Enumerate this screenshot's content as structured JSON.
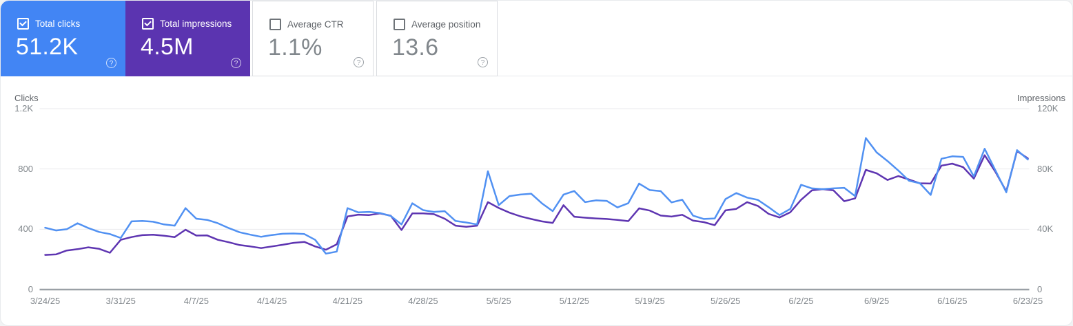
{
  "cards": [
    {
      "label": "Total clicks",
      "value": "51.2K",
      "checked": true,
      "selected": true,
      "color": "#4285f4"
    },
    {
      "label": "Total impressions",
      "value": "4.5M",
      "checked": true,
      "selected": true,
      "color": "#5b34b0"
    },
    {
      "label": "Average CTR",
      "value": "1.1%",
      "checked": false,
      "selected": false,
      "color": "#ffffff"
    },
    {
      "label": "Average position",
      "value": "13.6",
      "checked": false,
      "selected": false,
      "color": "#ffffff"
    }
  ],
  "chart_data": {
    "type": "line",
    "left_axis": {
      "title": "Clicks",
      "ticks": [
        "1.2K",
        "800",
        "400",
        "0"
      ],
      "max": 1200
    },
    "right_axis": {
      "title": "Impressions",
      "ticks": [
        "120K",
        "80K",
        "40K",
        "0"
      ],
      "max": 120000
    },
    "x_tick_labels": [
      "3/24/25",
      "3/31/25",
      "4/7/25",
      "4/14/25",
      "4/21/25",
      "4/28/25",
      "5/5/25",
      "5/12/25",
      "5/19/25",
      "5/26/25",
      "6/2/25",
      "6/9/25",
      "6/16/25",
      "6/23/25"
    ],
    "grid": true,
    "legend_position": "none",
    "series": [
      {
        "name": "Total impressions",
        "axis": "right",
        "color": "#5e35b1",
        "values": [
          23000,
          23300,
          25900,
          26800,
          28000,
          27000,
          24400,
          33000,
          34800,
          36100,
          36400,
          35700,
          34800,
          39700,
          35800,
          35900,
          33000,
          31400,
          29500,
          28600,
          27500,
          28600,
          29700,
          31000,
          31600,
          28600,
          26400,
          30000,
          48500,
          49700,
          49400,
          50500,
          49000,
          39500,
          50500,
          50500,
          50000,
          47000,
          42400,
          41600,
          42400,
          58000,
          54100,
          51000,
          48600,
          46800,
          45200,
          44200,
          56000,
          48300,
          47700,
          47200,
          46800,
          46200,
          45400,
          53900,
          52400,
          49100,
          48400,
          49600,
          45700,
          44700,
          42700,
          52500,
          53500,
          58000,
          55500,
          50200,
          47800,
          51300,
          59500,
          65800,
          66600,
          65800,
          58600,
          60500,
          79400,
          77100,
          72700,
          75300,
          73000,
          70500,
          70300,
          82200,
          83500,
          81200,
          73600,
          89100,
          78000,
          65200,
          91900,
          87000
        ]
      },
      {
        "name": "Total clicks",
        "axis": "left",
        "color": "#5191f2",
        "values": [
          410,
          392,
          400,
          440,
          408,
          382,
          368,
          342,
          452,
          455,
          450,
          432,
          424,
          540,
          470,
          462,
          440,
          408,
          380,
          364,
          350,
          362,
          370,
          372,
          368,
          330,
          238,
          252,
          540,
          512,
          515,
          508,
          488,
          432,
          572,
          527,
          515,
          520,
          455,
          445,
          432,
          785,
          560,
          620,
          630,
          636,
          572,
          520,
          630,
          654,
          580,
          592,
          588,
          545,
          573,
          703,
          660,
          653,
          578,
          596,
          490,
          468,
          472,
          600,
          640,
          610,
          595,
          546,
          494,
          535,
          695,
          671,
          666,
          671,
          675,
          620,
          1005,
          910,
          853,
          790,
          722,
          705,
          628,
          868,
          884,
          880,
          750,
          934,
          790,
          645,
          925,
          863
        ]
      }
    ]
  }
}
